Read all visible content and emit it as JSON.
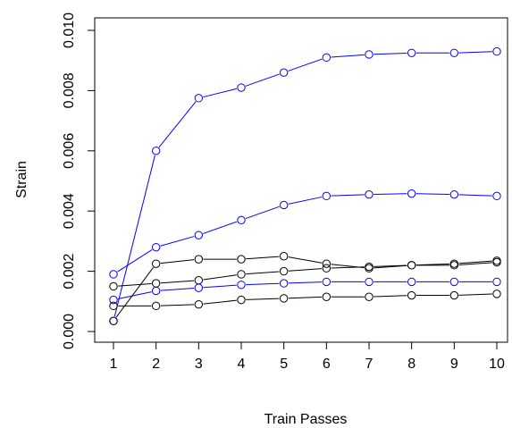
{
  "chart_data": {
    "type": "line",
    "title": "",
    "xlabel": "Train Passes",
    "ylabel": "Strain",
    "x": [
      1,
      2,
      3,
      4,
      5,
      6,
      7,
      8,
      9,
      10
    ],
    "xlim": [
      1,
      10
    ],
    "ylim": [
      0.0,
      0.01
    ],
    "x_ticks": [
      1,
      2,
      3,
      4,
      5,
      6,
      7,
      8,
      9,
      10
    ],
    "y_ticks": [
      0.0,
      0.002,
      0.004,
      0.006,
      0.008,
      0.01
    ],
    "x_tick_labels": [
      "1",
      "2",
      "3",
      "4",
      "5",
      "6",
      "7",
      "8",
      "9",
      "10"
    ],
    "y_tick_labels": [
      "0.000",
      "0.002",
      "0.004",
      "0.006",
      "0.008",
      "0.010"
    ],
    "grid": false,
    "legend": "none",
    "series": [
      {
        "color": "#0000ff",
        "values": [
          0.00035,
          0.006,
          0.00775,
          0.0081,
          0.0086,
          0.0091,
          0.0092,
          0.00925,
          0.00925,
          0.0093
        ]
      },
      {
        "color": "#0000ff",
        "values": [
          0.0019,
          0.0028,
          0.0032,
          0.0037,
          0.0042,
          0.0045,
          0.00455,
          0.00458,
          0.00455,
          0.0045
        ]
      },
      {
        "color": "#0000ff",
        "values": [
          0.00105,
          0.00135,
          0.00145,
          0.00155,
          0.0016,
          0.00165,
          0.00165,
          0.00165,
          0.00165,
          0.00165
        ]
      },
      {
        "color": "#000000",
        "values": [
          0.00035,
          0.00225,
          0.0024,
          0.0024,
          0.0025,
          0.00225,
          0.0021,
          0.0022,
          0.0022,
          0.0023
        ]
      },
      {
        "color": "#000000",
        "values": [
          0.0015,
          0.0016,
          0.0017,
          0.0019,
          0.002,
          0.0021,
          0.00215,
          0.0022,
          0.00225,
          0.00235
        ]
      },
      {
        "color": "#000000",
        "values": [
          0.00085,
          0.00085,
          0.0009,
          0.00105,
          0.0011,
          0.00115,
          0.00115,
          0.0012,
          0.0012,
          0.00125
        ]
      }
    ]
  }
}
